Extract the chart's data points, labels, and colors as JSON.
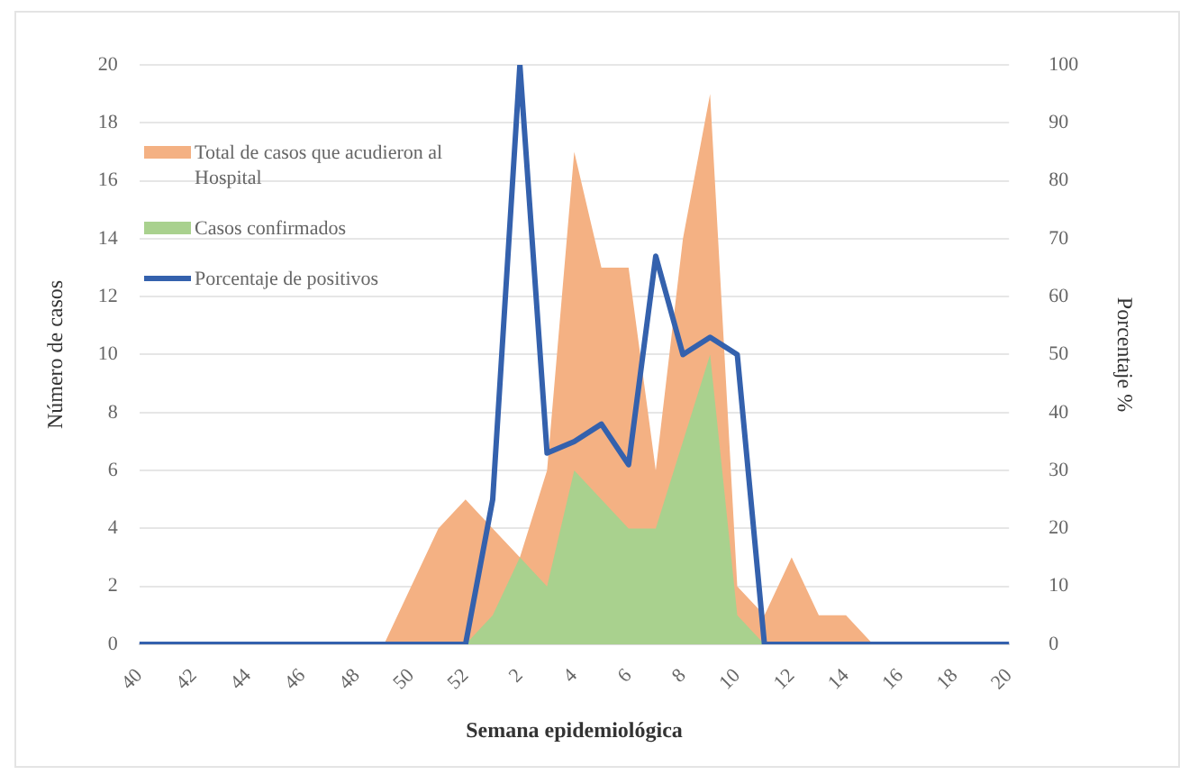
{
  "chart_data": {
    "type": "area",
    "xlabel": "Semana epidemiológica",
    "ylabel": "Número de casos",
    "y2label": "Porcentaje %",
    "categories": [
      "40",
      null,
      "42",
      null,
      "44",
      null,
      "46",
      null,
      "48",
      null,
      "50",
      null,
      "52",
      null,
      "2",
      null,
      "4",
      null,
      "6",
      null,
      "8",
      null,
      "10",
      null,
      "12",
      null,
      "14",
      null,
      "16",
      null,
      "18",
      null,
      "20"
    ],
    "series": [
      {
        "name": "Total de casos que acudieron al Hospital",
        "color": "#f4b183",
        "values": [
          0,
          0,
          0,
          0,
          0,
          0,
          0,
          0,
          0,
          0,
          2,
          4,
          5,
          4,
          3,
          6,
          17,
          13,
          13,
          6,
          14,
          19,
          2,
          1,
          3,
          1,
          1,
          0,
          0,
          0,
          0,
          0,
          0
        ]
      },
      {
        "name": "Casos confirmados",
        "color": "#a9d18e",
        "values": [
          0,
          0,
          0,
          0,
          0,
          0,
          0,
          0,
          0,
          0,
          0,
          0,
          0,
          1,
          3,
          2,
          6,
          5,
          4,
          4,
          7,
          10,
          1,
          0,
          0,
          0,
          0,
          0,
          0,
          0,
          0,
          0,
          0
        ]
      },
      {
        "name": "Porcentaje de positivos",
        "type": "line",
        "axis": "y2",
        "color": "#3461ad",
        "values": [
          0,
          0,
          0,
          0,
          0,
          0,
          0,
          0,
          0,
          0,
          0,
          0,
          0,
          25,
          100,
          33,
          35,
          38,
          31,
          67,
          50,
          53,
          50,
          0,
          0,
          0,
          0,
          0,
          0,
          0,
          0,
          0,
          0
        ]
      }
    ],
    "ylim": [
      0,
      20
    ],
    "yticks": [
      0,
      2,
      4,
      6,
      8,
      10,
      12,
      14,
      16,
      18,
      20
    ],
    "y2lim": [
      0,
      100
    ],
    "y2ticks": [
      0,
      10,
      20,
      30,
      40,
      50,
      60,
      70,
      80,
      90,
      100
    ],
    "grid": "y",
    "legend": "top left",
    "marker": "none"
  }
}
